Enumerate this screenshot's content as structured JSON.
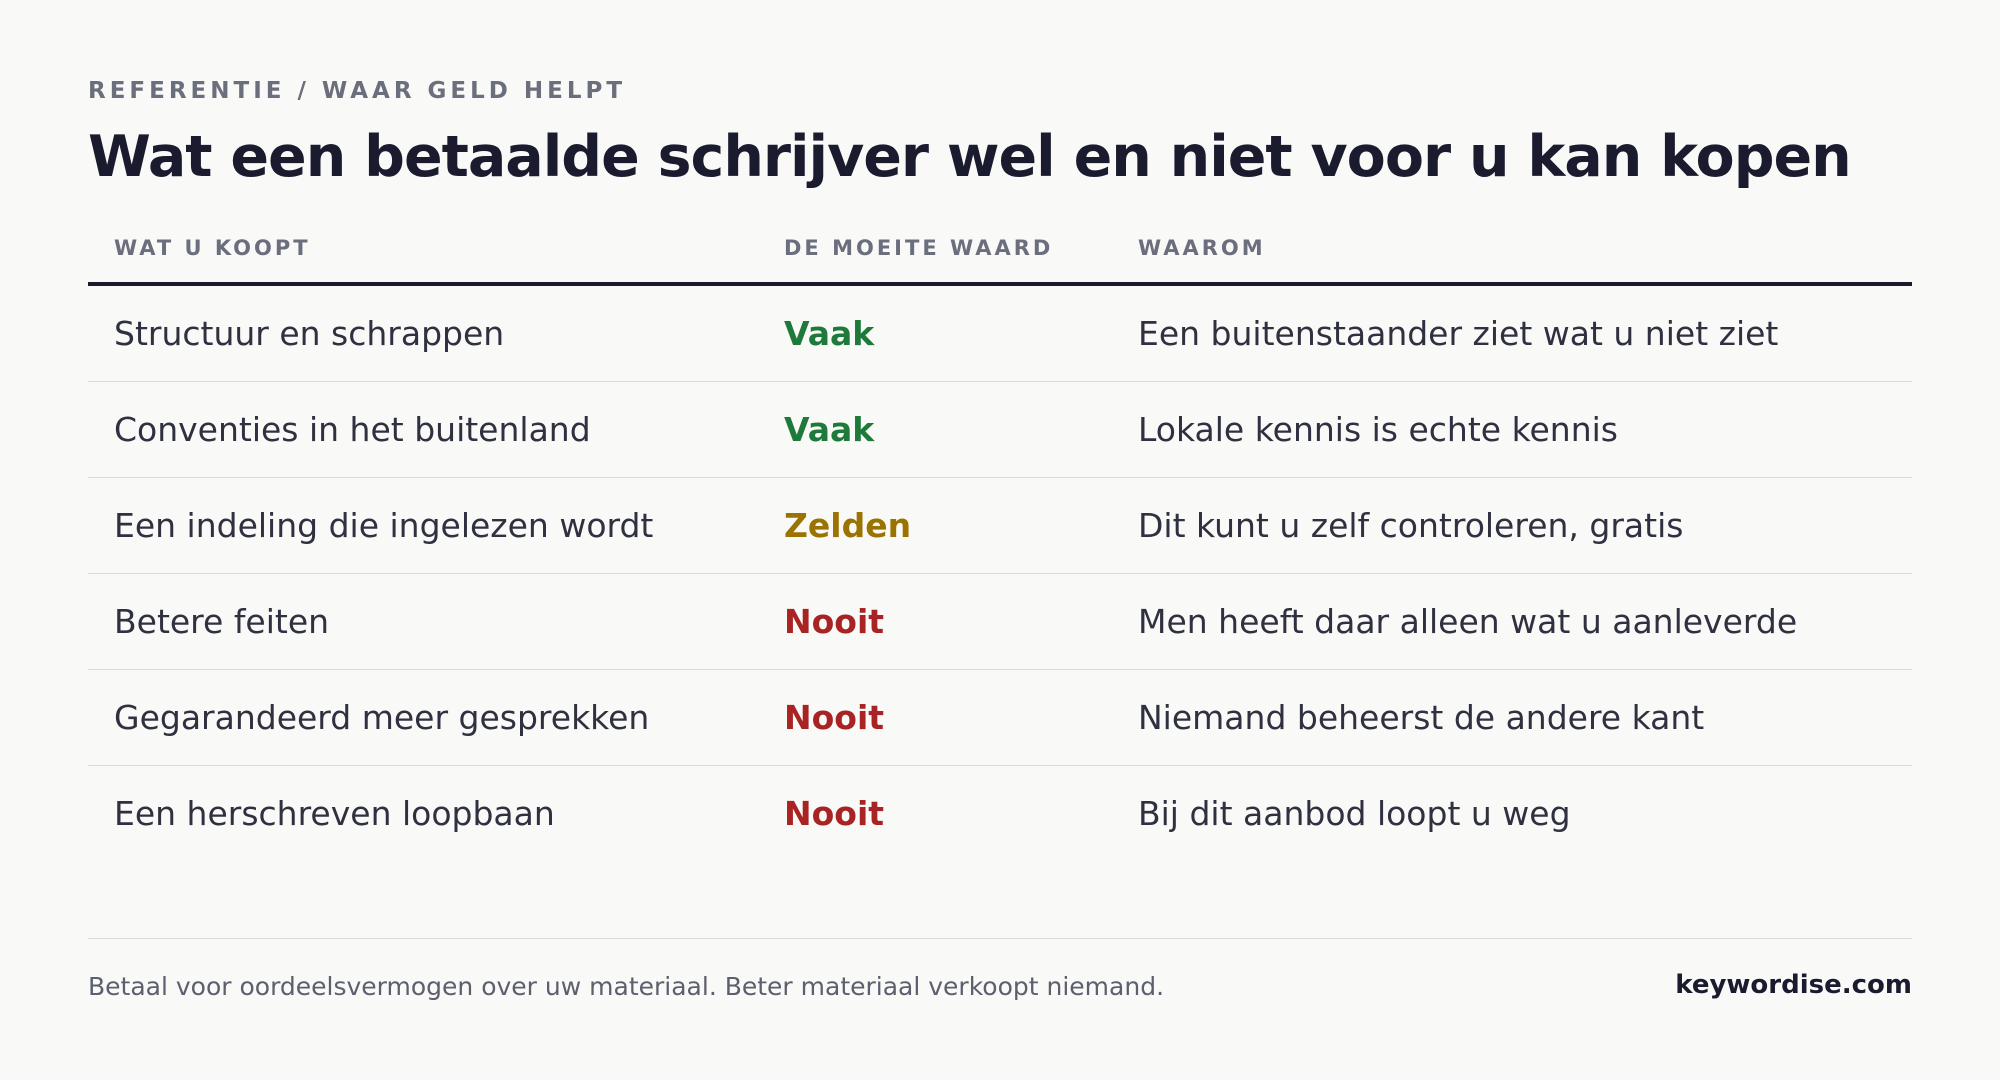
{
  "header": {
    "eyebrow": "REFERENTIE / WAAR GELD HELPT",
    "title": "Wat een betaalde schrijver wel en niet voor u kan kopen"
  },
  "table": {
    "columns": [
      "WAT U KOOPT",
      "DE MOEITE WAARD",
      "WAAROM"
    ],
    "rows": [
      {
        "item": "Structuur en schrappen",
        "verdict": "Vaak",
        "reason": "Een buitenstaander ziet wat u niet ziet",
        "level": "often"
      },
      {
        "item": "Conventies in het buitenland",
        "verdict": "Vaak",
        "reason": "Lokale kennis is echte kennis",
        "level": "often"
      },
      {
        "item": "Een indeling die ingelezen wordt",
        "verdict": "Zelden",
        "reason": "Dit kunt u zelf controleren, gratis",
        "level": "rarely"
      },
      {
        "item": "Betere feiten",
        "verdict": "Nooit",
        "reason": "Men heeft daar alleen wat u aanleverde",
        "level": "never"
      },
      {
        "item": "Gegarandeerd meer gesprekken",
        "verdict": "Nooit",
        "reason": "Niemand beheerst de andere kant",
        "level": "never"
      },
      {
        "item": "Een herschreven loopbaan",
        "verdict": "Nooit",
        "reason": "Bij dit aanbod loopt u weg",
        "level": "never"
      }
    ]
  },
  "colors": {
    "often": "#1e7a3a",
    "rarely": "#9a7300",
    "never": "#a82323"
  },
  "footer": {
    "note": "Betaal voor oordeelsvermogen over uw materiaal. Beter materiaal verkoopt niemand.",
    "brand": "keywordise.com"
  }
}
